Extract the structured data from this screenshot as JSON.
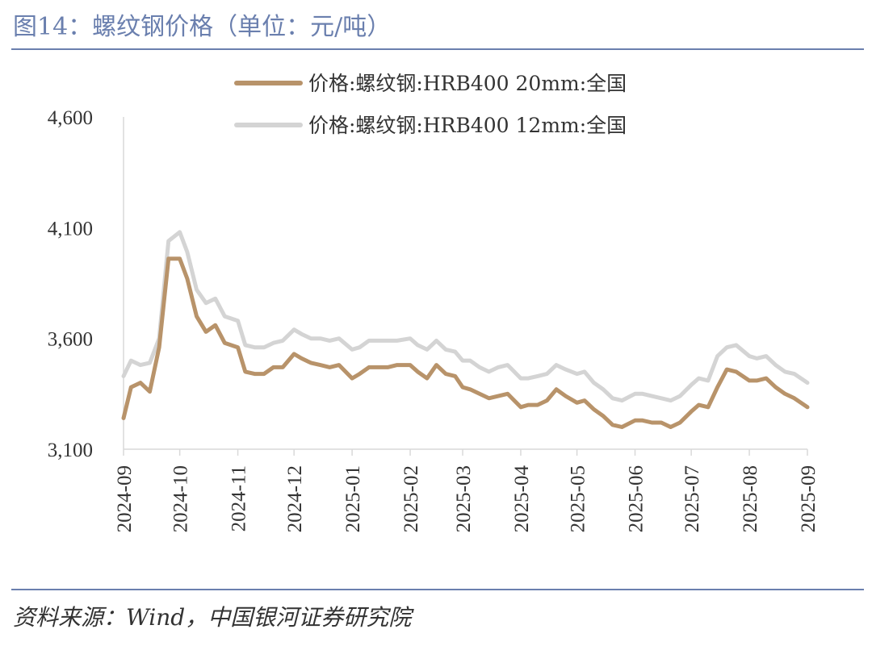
{
  "header": {
    "title": "图14：螺纹钢价格（单位：元/吨）"
  },
  "footer": {
    "source": "资料来源：Wind，中国银河证券研究院"
  },
  "chart_data": {
    "type": "line",
    "title": "图14：螺纹钢价格（单位：元/吨）",
    "xlabel": "",
    "ylabel": "",
    "ylim": [
      3100,
      4600
    ],
    "yticks": [
      3100,
      3600,
      4100,
      4600
    ],
    "ytick_labels": [
      "3,100",
      "3,600",
      "4,100",
      "4,600"
    ],
    "xtick_labels": [
      "2024-09",
      "2024-10",
      "2024-11",
      "2024-12",
      "2025-01",
      "2025-02",
      "2025-03",
      "2025-04",
      "2025-05",
      "2025-06",
      "2025-07",
      "2025-08",
      "2025-09"
    ],
    "legend_position": "top",
    "grid": false,
    "x": [
      "2024-09-01",
      "2024-09-05",
      "2024-09-10",
      "2024-09-15",
      "2024-09-20",
      "2024-09-25",
      "2024-10-01",
      "2024-10-05",
      "2024-10-10",
      "2024-10-15",
      "2024-10-20",
      "2024-10-25",
      "2024-11-01",
      "2024-11-05",
      "2024-11-10",
      "2024-11-15",
      "2024-11-20",
      "2024-11-25",
      "2024-12-01",
      "2024-12-05",
      "2024-12-10",
      "2024-12-15",
      "2024-12-20",
      "2024-12-25",
      "2025-01-01",
      "2025-01-05",
      "2025-01-10",
      "2025-01-15",
      "2025-01-20",
      "2025-01-25",
      "2025-02-01",
      "2025-02-05",
      "2025-02-10",
      "2025-02-15",
      "2025-02-20",
      "2025-02-25",
      "2025-03-01",
      "2025-03-05",
      "2025-03-10",
      "2025-03-15",
      "2025-03-20",
      "2025-03-25",
      "2025-04-01",
      "2025-04-05",
      "2025-04-10",
      "2025-04-15",
      "2025-04-20",
      "2025-04-25",
      "2025-05-01",
      "2025-05-05",
      "2025-05-10",
      "2025-05-15",
      "2025-05-20",
      "2025-05-25",
      "2025-06-01",
      "2025-06-05",
      "2025-06-10",
      "2025-06-15",
      "2025-06-20",
      "2025-06-25",
      "2025-07-01",
      "2025-07-05",
      "2025-07-10",
      "2025-07-15",
      "2025-07-20",
      "2025-07-25",
      "2025-08-01",
      "2025-08-05",
      "2025-08-10",
      "2025-08-15",
      "2025-08-20",
      "2025-08-25",
      "2025-09-01"
    ],
    "series": [
      {
        "name": "价格:螺纹钢:HRB400 20mm:全国",
        "color": "#b8936a",
        "values": [
          3240,
          3380,
          3400,
          3360,
          3560,
          3960,
          3960,
          3870,
          3700,
          3630,
          3660,
          3580,
          3560,
          3450,
          3440,
          3440,
          3470,
          3470,
          3530,
          3510,
          3490,
          3480,
          3470,
          3480,
          3420,
          3440,
          3470,
          3470,
          3470,
          3480,
          3480,
          3450,
          3420,
          3480,
          3440,
          3430,
          3380,
          3370,
          3350,
          3330,
          3340,
          3350,
          3290,
          3300,
          3300,
          3320,
          3370,
          3340,
          3310,
          3320,
          3280,
          3250,
          3210,
          3200,
          3230,
          3230,
          3220,
          3220,
          3200,
          3220,
          3270,
          3300,
          3290,
          3380,
          3460,
          3450,
          3410,
          3410,
          3420,
          3380,
          3350,
          3330,
          3290
        ]
      },
      {
        "name": "价格:螺纹钢:HRB400 12mm:全国",
        "color": "#d4d4d4",
        "values": [
          3430,
          3500,
          3480,
          3490,
          3600,
          4040,
          4080,
          3990,
          3820,
          3760,
          3780,
          3700,
          3680,
          3570,
          3560,
          3560,
          3580,
          3590,
          3640,
          3620,
          3600,
          3600,
          3590,
          3600,
          3550,
          3560,
          3590,
          3590,
          3590,
          3590,
          3600,
          3570,
          3550,
          3590,
          3550,
          3540,
          3500,
          3500,
          3470,
          3450,
          3470,
          3480,
          3420,
          3420,
          3430,
          3440,
          3480,
          3460,
          3440,
          3450,
          3400,
          3370,
          3330,
          3320,
          3350,
          3350,
          3340,
          3330,
          3320,
          3340,
          3390,
          3420,
          3410,
          3520,
          3560,
          3570,
          3520,
          3510,
          3520,
          3480,
          3450,
          3440,
          3400
        ]
      }
    ]
  }
}
